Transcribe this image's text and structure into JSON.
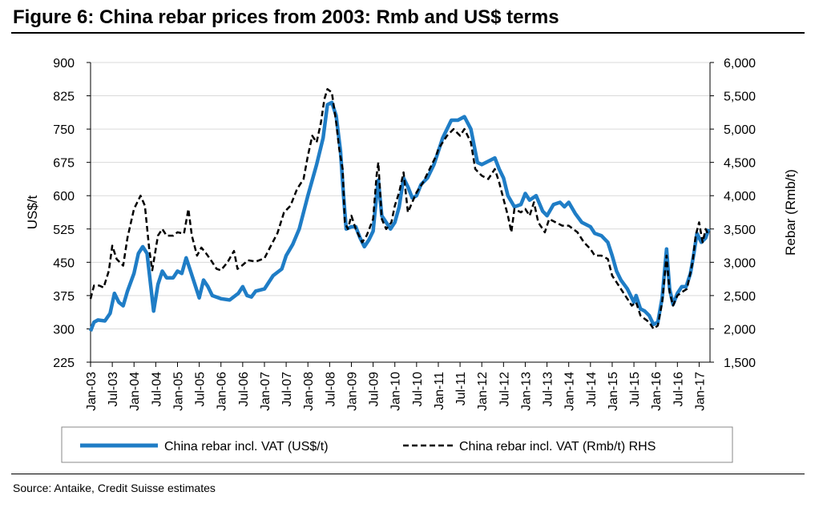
{
  "title": "Figure 6: China rebar prices from 2003: Rmb and US$ terms",
  "source": "Source: Antaike, Credit Suisse estimates",
  "chart_data": {
    "type": "line",
    "ylabel_left": "US$/t",
    "ylabel_right": "Rebar  (Rmb/t)",
    "yticks_left": [
      "900",
      "825",
      "750",
      "675",
      "600",
      "525",
      "450",
      "375",
      "300",
      "225"
    ],
    "yticks_right": [
      "6,000",
      "5,500",
      "5,000",
      "4,500",
      "4,000",
      "3,500",
      "3,000",
      "2,500",
      "2,000",
      "1,500"
    ],
    "ylim_left": [
      225,
      900
    ],
    "ylim_right": [
      1500,
      6000
    ],
    "x_ticks": [
      "Jan-03",
      "Jul-03",
      "Jan-04",
      "Jul-04",
      "Jan-05",
      "Jul-05",
      "Jan-06",
      "Jul-06",
      "Jan-07",
      "Jul-07",
      "Jan-08",
      "Jul-08",
      "Jan-09",
      "Jul-09",
      "Jan-10",
      "Jul-10",
      "Jan-11",
      "Jul-11",
      "Jan-12",
      "Jul-12",
      "Jan-13",
      "Jul-13",
      "Jan-14",
      "Jul-14",
      "Jan-15",
      "Jul-15",
      "Jan-16",
      "Jul-16",
      "Jan-17"
    ],
    "x_range": [
      2003.0,
      2017.25
    ],
    "series": [
      {
        "name": "China rebar incl. VAT (US$/t)",
        "axis": "left",
        "color": "#1F7DC6",
        "style": "solid",
        "points": [
          [
            2003.0,
            295
          ],
          [
            2003.08,
            315
          ],
          [
            2003.17,
            320
          ],
          [
            2003.33,
            318
          ],
          [
            2003.45,
            335
          ],
          [
            2003.55,
            380
          ],
          [
            2003.65,
            360
          ],
          [
            2003.75,
            352
          ],
          [
            2003.85,
            385
          ],
          [
            2004.0,
            425
          ],
          [
            2004.1,
            470
          ],
          [
            2004.2,
            485
          ],
          [
            2004.3,
            470
          ],
          [
            2004.38,
            400
          ],
          [
            2004.45,
            340
          ],
          [
            2004.55,
            400
          ],
          [
            2004.65,
            430
          ],
          [
            2004.75,
            415
          ],
          [
            2004.9,
            415
          ],
          [
            2005.0,
            430
          ],
          [
            2005.1,
            425
          ],
          [
            2005.2,
            460
          ],
          [
            2005.3,
            430
          ],
          [
            2005.4,
            400
          ],
          [
            2005.5,
            370
          ],
          [
            2005.6,
            410
          ],
          [
            2005.7,
            395
          ],
          [
            2005.8,
            375
          ],
          [
            2006.0,
            368
          ],
          [
            2006.2,
            365
          ],
          [
            2006.4,
            380
          ],
          [
            2006.5,
            395
          ],
          [
            2006.6,
            375
          ],
          [
            2006.7,
            372
          ],
          [
            2006.8,
            385
          ],
          [
            2007.0,
            390
          ],
          [
            2007.2,
            420
          ],
          [
            2007.4,
            435
          ],
          [
            2007.5,
            465
          ],
          [
            2007.65,
            490
          ],
          [
            2007.8,
            525
          ],
          [
            2008.0,
            600
          ],
          [
            2008.2,
            670
          ],
          [
            2008.35,
            730
          ],
          [
            2008.45,
            805
          ],
          [
            2008.55,
            810
          ],
          [
            2008.65,
            780
          ],
          [
            2008.75,
            700
          ],
          [
            2008.82,
            600
          ],
          [
            2008.88,
            525
          ],
          [
            2009.0,
            530
          ],
          [
            2009.1,
            530
          ],
          [
            2009.2,
            505
          ],
          [
            2009.3,
            485
          ],
          [
            2009.4,
            500
          ],
          [
            2009.5,
            520
          ],
          [
            2009.58,
            600
          ],
          [
            2009.62,
            635
          ],
          [
            2009.7,
            555
          ],
          [
            2009.8,
            540
          ],
          [
            2009.9,
            525
          ],
          [
            2010.0,
            540
          ],
          [
            2010.1,
            575
          ],
          [
            2010.2,
            640
          ],
          [
            2010.3,
            620
          ],
          [
            2010.4,
            595
          ],
          [
            2010.5,
            600
          ],
          [
            2010.6,
            625
          ],
          [
            2010.75,
            640
          ],
          [
            2010.9,
            670
          ],
          [
            2011.0,
            700
          ],
          [
            2011.1,
            730
          ],
          [
            2011.2,
            750
          ],
          [
            2011.3,
            770
          ],
          [
            2011.45,
            770
          ],
          [
            2011.6,
            778
          ],
          [
            2011.75,
            750
          ],
          [
            2011.9,
            675
          ],
          [
            2012.0,
            670
          ],
          [
            2012.2,
            680
          ],
          [
            2012.3,
            685
          ],
          [
            2012.4,
            660
          ],
          [
            2012.5,
            640
          ],
          [
            2012.6,
            600
          ],
          [
            2012.75,
            575
          ],
          [
            2012.9,
            580
          ],
          [
            2013.0,
            605
          ],
          [
            2013.1,
            590
          ],
          [
            2013.25,
            600
          ],
          [
            2013.4,
            565
          ],
          [
            2013.5,
            555
          ],
          [
            2013.65,
            580
          ],
          [
            2013.8,
            585
          ],
          [
            2013.9,
            575
          ],
          [
            2014.0,
            585
          ],
          [
            2014.15,
            560
          ],
          [
            2014.3,
            540
          ],
          [
            2014.5,
            530
          ],
          [
            2014.6,
            515
          ],
          [
            2014.75,
            510
          ],
          [
            2014.9,
            495
          ],
          [
            2015.0,
            465
          ],
          [
            2015.1,
            430
          ],
          [
            2015.2,
            410
          ],
          [
            2015.35,
            390
          ],
          [
            2015.5,
            360
          ],
          [
            2015.55,
            375
          ],
          [
            2015.65,
            345
          ],
          [
            2015.75,
            340
          ],
          [
            2015.85,
            330
          ],
          [
            2015.95,
            310
          ],
          [
            2016.05,
            315
          ],
          [
            2016.15,
            370
          ],
          [
            2016.25,
            480
          ],
          [
            2016.32,
            390
          ],
          [
            2016.4,
            355
          ],
          [
            2016.5,
            380
          ],
          [
            2016.6,
            395
          ],
          [
            2016.7,
            395
          ],
          [
            2016.8,
            425
          ],
          [
            2016.88,
            470
          ],
          [
            2016.95,
            515
          ],
          [
            2017.05,
            495
          ],
          [
            2017.15,
            505
          ],
          [
            2017.22,
            525
          ]
        ]
      },
      {
        "name": "China rebar incl. VAT (Rmb/t) RHS",
        "axis": "right",
        "color": "#000000",
        "style": "dashed",
        "points": [
          [
            2003.0,
            2450
          ],
          [
            2003.08,
            2650
          ],
          [
            2003.2,
            2650
          ],
          [
            2003.3,
            2620
          ],
          [
            2003.42,
            2870
          ],
          [
            2003.5,
            3250
          ],
          [
            2003.6,
            3050
          ],
          [
            2003.75,
            2950
          ],
          [
            2003.85,
            3370
          ],
          [
            2004.0,
            3800
          ],
          [
            2004.15,
            4000
          ],
          [
            2004.25,
            3850
          ],
          [
            2004.35,
            3200
          ],
          [
            2004.42,
            2880
          ],
          [
            2004.55,
            3400
          ],
          [
            2004.65,
            3500
          ],
          [
            2004.75,
            3400
          ],
          [
            2004.9,
            3400
          ],
          [
            2005.0,
            3450
          ],
          [
            2005.15,
            3430
          ],
          [
            2005.25,
            3800
          ],
          [
            2005.33,
            3400
          ],
          [
            2005.45,
            3100
          ],
          [
            2005.55,
            3220
          ],
          [
            2005.65,
            3140
          ],
          [
            2005.75,
            3050
          ],
          [
            2005.9,
            2900
          ],
          [
            2006.0,
            2880
          ],
          [
            2006.15,
            3000
          ],
          [
            2006.3,
            3170
          ],
          [
            2006.38,
            2900
          ],
          [
            2006.5,
            2960
          ],
          [
            2006.62,
            3030
          ],
          [
            2006.8,
            3010
          ],
          [
            2007.0,
            3060
          ],
          [
            2007.15,
            3250
          ],
          [
            2007.3,
            3440
          ],
          [
            2007.45,
            3750
          ],
          [
            2007.6,
            3850
          ],
          [
            2007.75,
            4100
          ],
          [
            2007.9,
            4250
          ],
          [
            2008.0,
            4600
          ],
          [
            2008.1,
            4900
          ],
          [
            2008.2,
            4800
          ],
          [
            2008.3,
            5100
          ],
          [
            2008.38,
            5450
          ],
          [
            2008.45,
            5600
          ],
          [
            2008.55,
            5550
          ],
          [
            2008.65,
            5100
          ],
          [
            2008.72,
            4700
          ],
          [
            2008.8,
            4400
          ],
          [
            2008.85,
            3600
          ],
          [
            2008.92,
            3500
          ],
          [
            2009.0,
            3700
          ],
          [
            2009.1,
            3500
          ],
          [
            2009.25,
            3300
          ],
          [
            2009.35,
            3400
          ],
          [
            2009.5,
            3650
          ],
          [
            2009.58,
            4300
          ],
          [
            2009.62,
            4500
          ],
          [
            2009.7,
            3650
          ],
          [
            2009.8,
            3500
          ],
          [
            2009.92,
            3600
          ],
          [
            2010.0,
            3850
          ],
          [
            2010.1,
            4050
          ],
          [
            2010.2,
            4350
          ],
          [
            2010.3,
            3750
          ],
          [
            2010.4,
            3900
          ],
          [
            2010.5,
            4050
          ],
          [
            2010.65,
            4200
          ],
          [
            2010.8,
            4400
          ],
          [
            2010.95,
            4600
          ],
          [
            2011.0,
            4700
          ],
          [
            2011.1,
            4800
          ],
          [
            2011.2,
            4900
          ],
          [
            2011.35,
            5000
          ],
          [
            2011.5,
            4900
          ],
          [
            2011.6,
            5000
          ],
          [
            2011.75,
            4800
          ],
          [
            2011.85,
            4400
          ],
          [
            2012.0,
            4300
          ],
          [
            2012.15,
            4250
          ],
          [
            2012.3,
            4400
          ],
          [
            2012.4,
            4200
          ],
          [
            2012.5,
            3950
          ],
          [
            2012.6,
            3700
          ],
          [
            2012.68,
            3450
          ],
          [
            2012.75,
            3800
          ],
          [
            2012.9,
            3750
          ],
          [
            2013.0,
            3800
          ],
          [
            2013.1,
            3700
          ],
          [
            2013.2,
            3900
          ],
          [
            2013.3,
            3600
          ],
          [
            2013.45,
            3450
          ],
          [
            2013.55,
            3650
          ],
          [
            2013.7,
            3600
          ],
          [
            2013.85,
            3550
          ],
          [
            2014.0,
            3550
          ],
          [
            2014.2,
            3450
          ],
          [
            2014.35,
            3300
          ],
          [
            2014.5,
            3200
          ],
          [
            2014.6,
            3100
          ],
          [
            2014.75,
            3100
          ],
          [
            2014.9,
            3050
          ],
          [
            2015.0,
            2800
          ],
          [
            2015.15,
            2650
          ],
          [
            2015.3,
            2500
          ],
          [
            2015.45,
            2350
          ],
          [
            2015.55,
            2400
          ],
          [
            2015.65,
            2200
          ],
          [
            2015.75,
            2150
          ],
          [
            2015.85,
            2100
          ],
          [
            2015.95,
            2000
          ],
          [
            2016.05,
            2050
          ],
          [
            2016.15,
            2400
          ],
          [
            2016.25,
            3100
          ],
          [
            2016.32,
            2550
          ],
          [
            2016.4,
            2350
          ],
          [
            2016.5,
            2500
          ],
          [
            2016.6,
            2550
          ],
          [
            2016.72,
            2600
          ],
          [
            2016.85,
            3000
          ],
          [
            2016.92,
            3400
          ],
          [
            2017.0,
            3600
          ],
          [
            2017.08,
            3300
          ],
          [
            2017.15,
            3500
          ],
          [
            2017.22,
            3400
          ]
        ]
      }
    ],
    "legend": {
      "placement": "bottom"
    }
  }
}
